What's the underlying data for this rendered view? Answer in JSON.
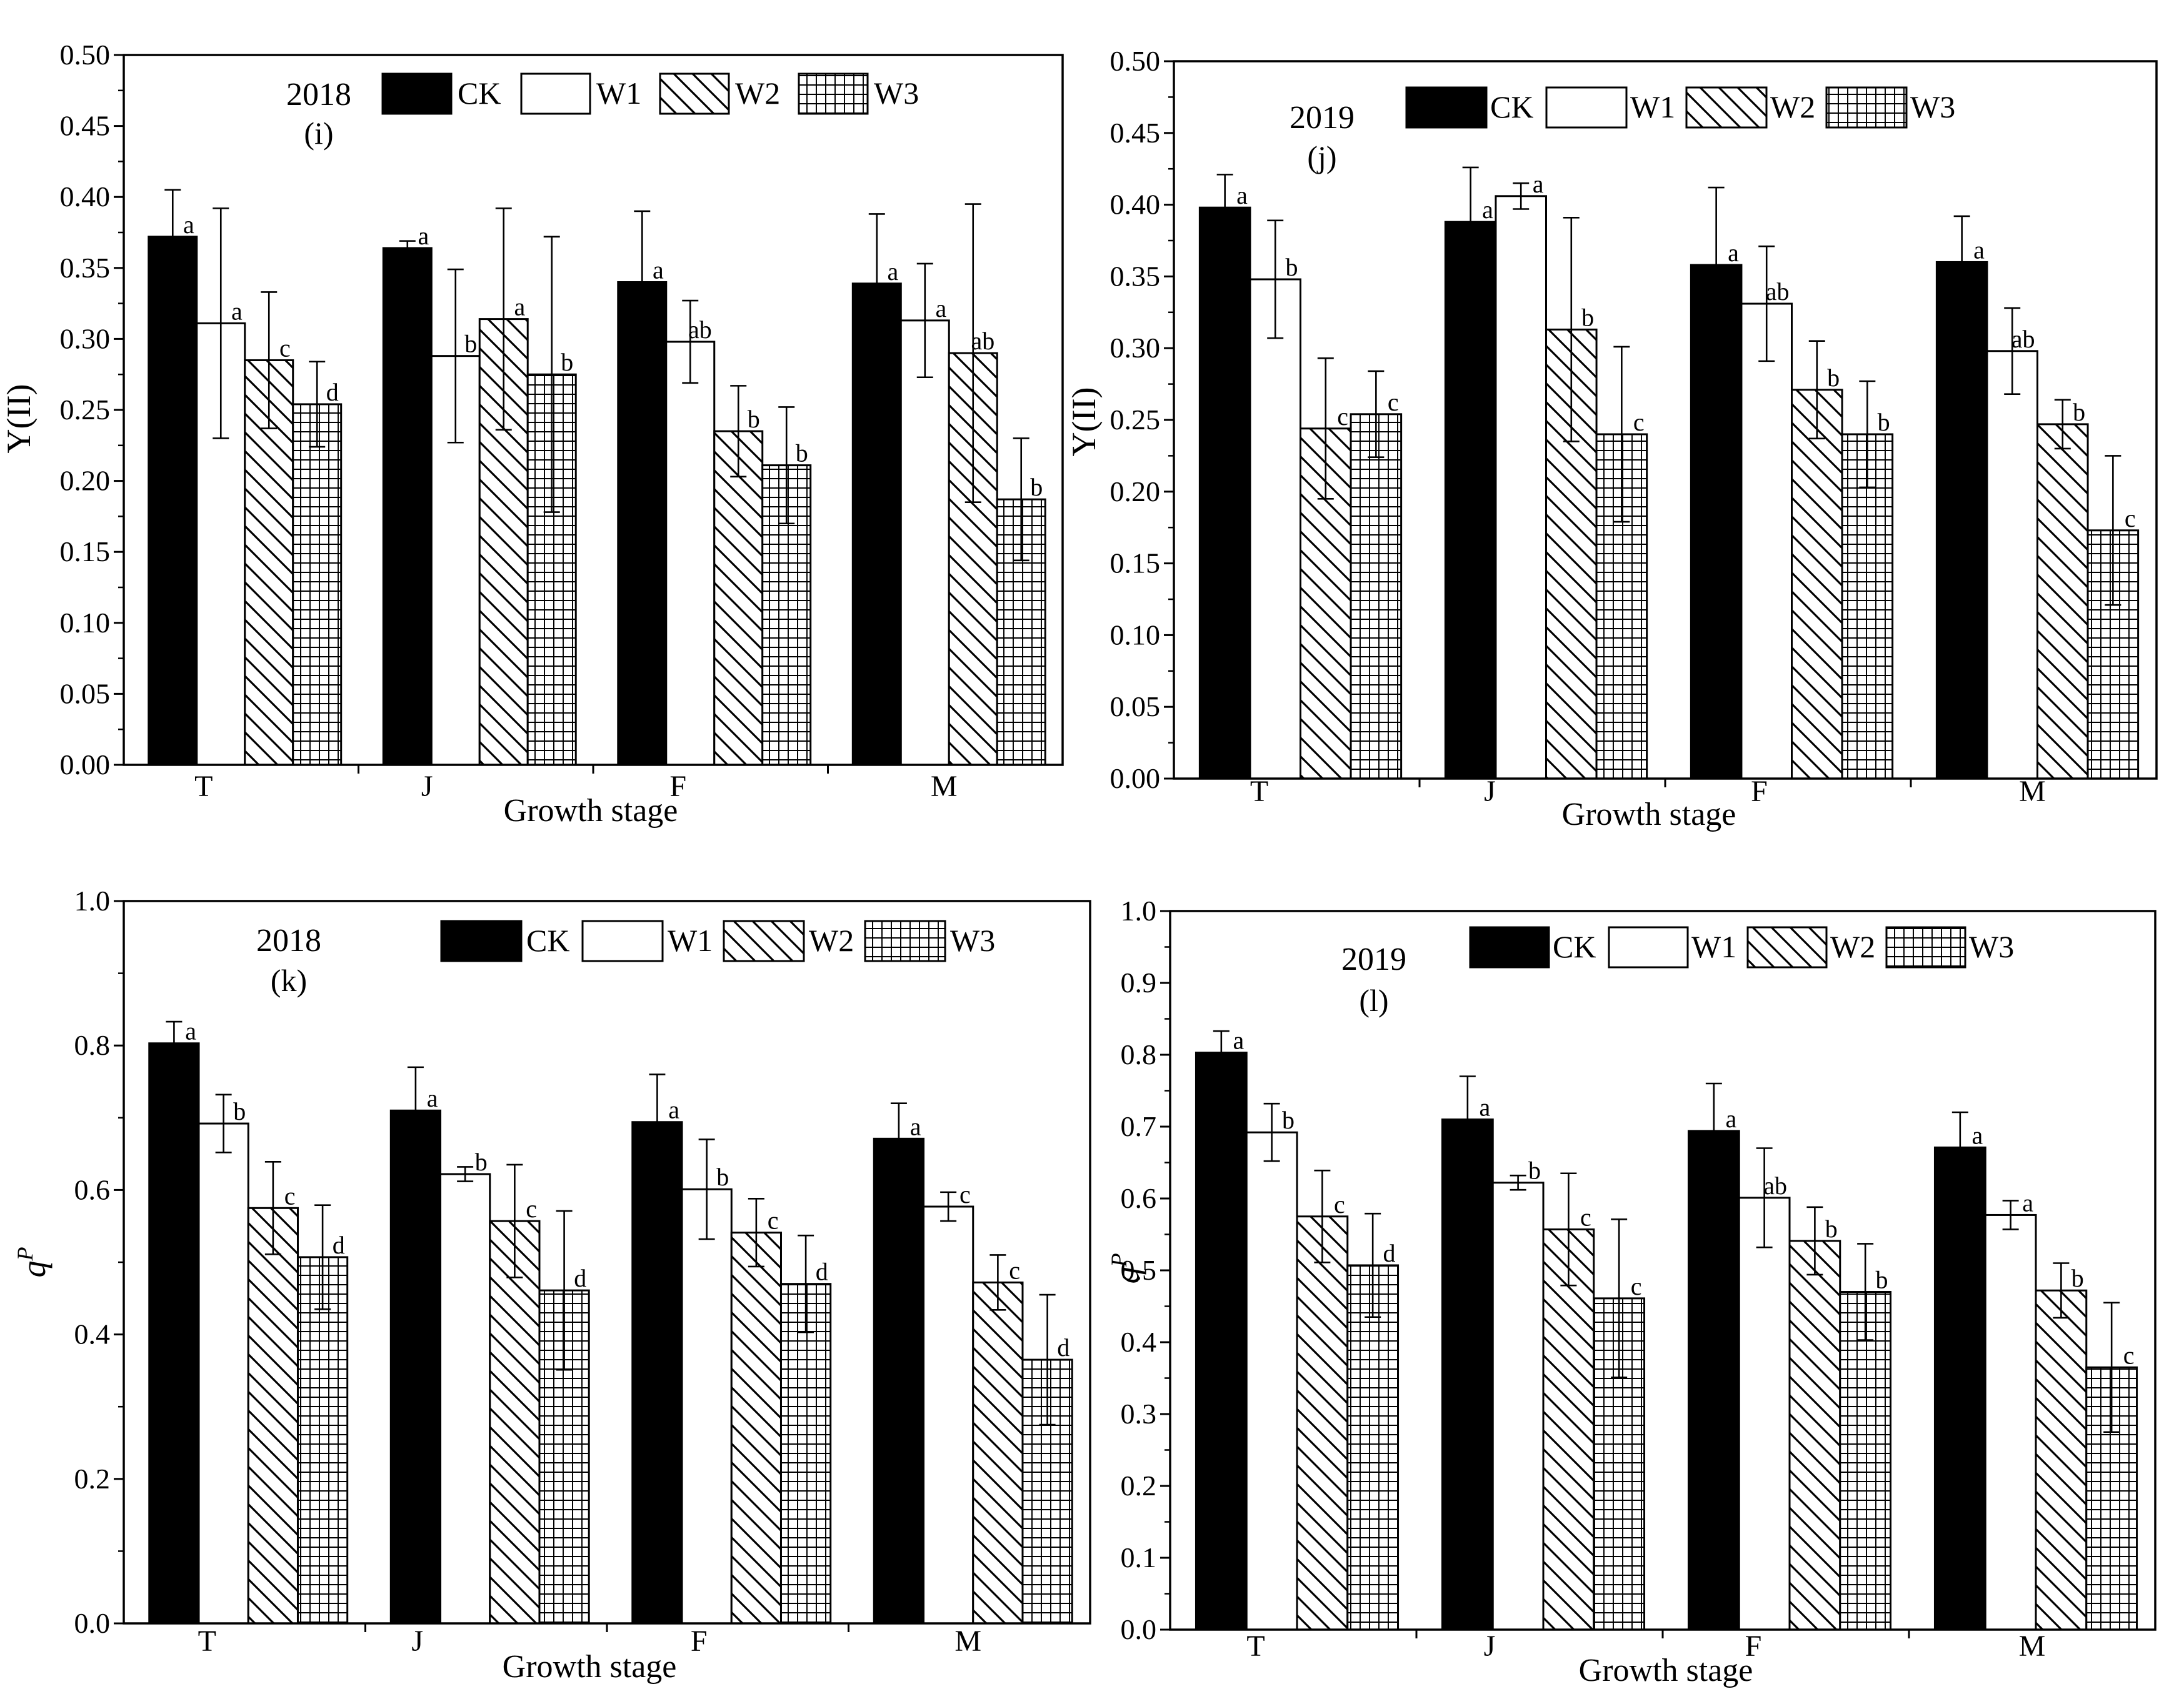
{
  "legend_labels": [
    "CK",
    "W1",
    "W2",
    "W3"
  ],
  "colors": {
    "CK": "#000000",
    "W1": "#ffffff",
    "line": "#000000"
  },
  "chart_data": [
    {
      "id": "i",
      "type": "bar",
      "title": "2018",
      "panel_label": "(i)",
      "xlabel": "Growth stage",
      "ylabel": "Y(II)",
      "categories": [
        "T",
        "J",
        "F",
        "M"
      ],
      "ylim": [
        0,
        0.5
      ],
      "yticks": [
        0.0,
        0.05,
        0.1,
        0.15,
        0.2,
        0.25,
        0.3,
        0.35,
        0.4,
        0.45,
        0.5
      ],
      "tick_decimals": 2,
      "series": [
        {
          "name": "CK",
          "values": [
            0.372,
            0.364,
            0.34,
            0.339
          ],
          "errors": [
            0.033,
            0.005,
            0.05,
            0.049
          ],
          "labels": [
            "a",
            "a",
            "a",
            "a"
          ]
        },
        {
          "name": "W1",
          "values": [
            0.311,
            0.288,
            0.298,
            0.313
          ],
          "errors": [
            0.081,
            0.061,
            0.029,
            0.04
          ],
          "labels": [
            "a",
            "b",
            "ab",
            "a"
          ]
        },
        {
          "name": "W2",
          "values": [
            0.285,
            0.314,
            0.235,
            0.29
          ],
          "errors": [
            0.048,
            0.078,
            0.032,
            0.105
          ],
          "labels": [
            "c",
            "a",
            "b",
            "ab"
          ]
        },
        {
          "name": "W3",
          "values": [
            0.254,
            0.275,
            0.211,
            0.187
          ],
          "errors": [
            0.03,
            0.097,
            0.041,
            0.043
          ],
          "labels": [
            "d",
            "b",
            "b",
            "b"
          ]
        }
      ]
    },
    {
      "id": "j",
      "type": "bar",
      "title": "2019",
      "panel_label": "(j)",
      "xlabel": "Growth stage",
      "ylabel": "Y(II)",
      "categories": [
        "T",
        "J",
        "F",
        "M"
      ],
      "ylim": [
        0,
        0.5
      ],
      "yticks": [
        0.0,
        0.05,
        0.1,
        0.15,
        0.2,
        0.25,
        0.3,
        0.35,
        0.4,
        0.45,
        0.5
      ],
      "tick_decimals": 2,
      "series": [
        {
          "name": "CK",
          "values": [
            0.398,
            0.388,
            0.358,
            0.36
          ],
          "errors": [
            0.023,
            0.038,
            0.054,
            0.032
          ],
          "labels": [
            "a",
            "a",
            "a",
            "a"
          ]
        },
        {
          "name": "W1",
          "values": [
            0.348,
            0.406,
            0.331,
            0.298
          ],
          "errors": [
            0.041,
            0.009,
            0.04,
            0.03
          ],
          "labels": [
            "b",
            "a",
            "ab",
            "ab"
          ]
        },
        {
          "name": "W2",
          "values": [
            0.244,
            0.313,
            0.271,
            0.247
          ],
          "errors": [
            0.049,
            0.078,
            0.034,
            0.017
          ],
          "labels": [
            "c",
            "b",
            "b",
            "b"
          ]
        },
        {
          "name": "W3",
          "values": [
            0.254,
            0.24,
            0.24,
            0.173
          ],
          "errors": [
            0.03,
            0.061,
            0.037,
            0.052
          ],
          "labels": [
            "c",
            "c",
            "b",
            "c"
          ]
        }
      ]
    },
    {
      "id": "k",
      "type": "bar",
      "title": "2018",
      "panel_label": "(k)",
      "xlabel": "Growth stage",
      "ylabel": "qP",
      "categories": [
        "T",
        "J",
        "F",
        "M"
      ],
      "ylim": [
        0,
        1.0
      ],
      "yticks": [
        0.0,
        0.2,
        0.4,
        0.6,
        0.8,
        1.0
      ],
      "tick_decimals": 1,
      "series": [
        {
          "name": "CK",
          "values": [
            0.803,
            0.71,
            0.694,
            0.671
          ],
          "errors": [
            0.03,
            0.06,
            0.066,
            0.049
          ],
          "labels": [
            "a",
            "a",
            "a",
            "a"
          ]
        },
        {
          "name": "W1",
          "values": [
            0.692,
            0.622,
            0.601,
            0.577
          ],
          "errors": [
            0.04,
            0.01,
            0.069,
            0.02
          ],
          "labels": [
            "b",
            "b",
            "b",
            "c"
          ]
        },
        {
          "name": "W2",
          "values": [
            0.575,
            0.557,
            0.541,
            0.472
          ],
          "errors": [
            0.064,
            0.078,
            0.047,
            0.038
          ],
          "labels": [
            "c",
            "c",
            "c",
            "c"
          ]
        },
        {
          "name": "W3",
          "values": [
            0.507,
            0.461,
            0.47,
            0.365
          ],
          "errors": [
            0.072,
            0.11,
            0.067,
            0.09
          ],
          "labels": [
            "d",
            "d",
            "d",
            "d"
          ]
        }
      ]
    },
    {
      "id": "l",
      "type": "bar",
      "title": "2019",
      "panel_label": "(l)",
      "xlabel": "Growth stage",
      "ylabel": "qP",
      "categories": [
        "T",
        "J",
        "F",
        "M"
      ],
      "ylim": [
        0,
        1.0
      ],
      "yticks": [
        0.0,
        0.1,
        0.2,
        0.3,
        0.4,
        0.5,
        0.6,
        0.7,
        0.8,
        0.9,
        1.0
      ],
      "tick_decimals": 1,
      "series": [
        {
          "name": "CK",
          "values": [
            0.803,
            0.71,
            0.694,
            0.671
          ],
          "errors": [
            0.03,
            0.06,
            0.066,
            0.049
          ],
          "labels": [
            "a",
            "a",
            "a",
            "a"
          ]
        },
        {
          "name": "W1",
          "values": [
            0.692,
            0.622,
            0.601,
            0.577
          ],
          "errors": [
            0.04,
            0.01,
            0.069,
            0.02
          ],
          "labels": [
            "b",
            "b",
            "ab",
            "a"
          ]
        },
        {
          "name": "W2",
          "values": [
            0.575,
            0.557,
            0.541,
            0.472
          ],
          "errors": [
            0.064,
            0.078,
            0.047,
            0.038
          ],
          "labels": [
            "c",
            "c",
            "b",
            "b"
          ]
        },
        {
          "name": "W3",
          "values": [
            0.507,
            0.461,
            0.47,
            0.365
          ],
          "errors": [
            0.072,
            0.11,
            0.067,
            0.09
          ],
          "labels": [
            "d",
            "c",
            "b",
            "c"
          ]
        }
      ]
    }
  ]
}
